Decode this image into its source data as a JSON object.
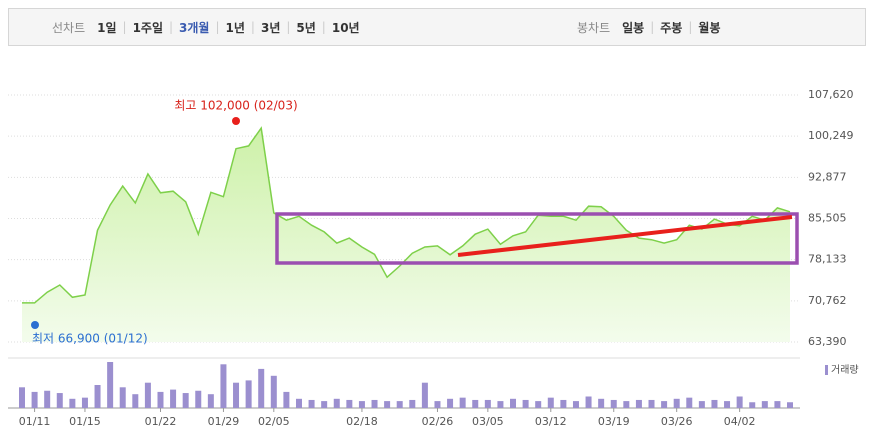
{
  "toolbar": {
    "line_label": "선차트",
    "periods": [
      "1일",
      "1주일",
      "3개월",
      "1년",
      "3년",
      "5년",
      "10년"
    ],
    "candle_label": "봉차트",
    "candle_periods": [
      "일봉",
      "주봉",
      "월봉"
    ]
  },
  "chart_data": {
    "type": "area",
    "color": "#7ed04a",
    "categories": [
      null,
      "01/11",
      null,
      null,
      null,
      "01/15",
      null,
      null,
      null,
      null,
      null,
      "01/22",
      null,
      null,
      null,
      null,
      "01/29",
      null,
      null,
      null,
      "02/05",
      null,
      null,
      null,
      null,
      null,
      null,
      "02/18",
      null,
      null,
      null,
      null,
      null,
      "02/26",
      null,
      null,
      null,
      "03/05",
      null,
      null,
      null,
      null,
      "03/12",
      null,
      null,
      null,
      null,
      "03/19",
      null,
      null,
      null,
      null,
      "03/26",
      null,
      null,
      null,
      null,
      "04/02",
      null,
      null,
      null,
      null
    ],
    "values": [
      70400,
      70400,
      72300,
      73600,
      71400,
      71800,
      83400,
      87900,
      91300,
      88300,
      93500,
      90100,
      90400,
      88500,
      82700,
      90200,
      89400,
      98000,
      98500,
      101700,
      86500,
      85200,
      85900,
      84300,
      83100,
      81100,
      82000,
      80400,
      79100,
      75000,
      77000,
      79300,
      80400,
      80600,
      79000,
      80600,
      82700,
      83600,
      80900,
      82400,
      83100,
      86100,
      85900,
      85900,
      85200,
      87700,
      87600,
      85900,
      83400,
      82000,
      81700,
      81100,
      81700,
      84300,
      83600,
      85400,
      84500,
      84200,
      85900,
      85200,
      87400,
      86700
    ],
    "volume": {
      "name": "거래량",
      "color": "#9b8fcf",
      "values": [
        18,
        14,
        15,
        13,
        8,
        9,
        20,
        40,
        18,
        12,
        22,
        14,
        16,
        13,
        15,
        12,
        38,
        22,
        24,
        34,
        28,
        14,
        8,
        7,
        6,
        8,
        7,
        6,
        7,
        6,
        6,
        7,
        22,
        6,
        8,
        9,
        7,
        7,
        6,
        8,
        7,
        6,
        9,
        7,
        6,
        10,
        8,
        7,
        6,
        7,
        7,
        6,
        8,
        9,
        6,
        7,
        6,
        10,
        5,
        6,
        6,
        5
      ]
    },
    "ylim": [
      63390,
      107620
    ],
    "yticks": [
      {
        "value": 63390,
        "label": "63,390"
      },
      {
        "value": 70762,
        "label": "70,762"
      },
      {
        "value": 78133,
        "label": "78,133"
      },
      {
        "value": 85505,
        "label": "85,505"
      },
      {
        "value": 92877,
        "label": "92,877"
      },
      {
        "value": 100249,
        "label": "100,249"
      },
      {
        "value": 107620,
        "label": "107,620"
      }
    ],
    "grid": true,
    "annotations": [
      "최고 102,000 (02/03)",
      "최저 66,900 (01/12)"
    ]
  }
}
